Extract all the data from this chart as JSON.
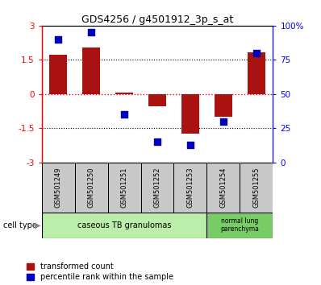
{
  "title": "GDS4256 / g4501912_3p_s_at",
  "samples": [
    "GSM501249",
    "GSM501250",
    "GSM501251",
    "GSM501252",
    "GSM501253",
    "GSM501254",
    "GSM501255"
  ],
  "transformed_count": [
    1.72,
    2.05,
    0.05,
    -0.55,
    -1.72,
    -1.0,
    1.82
  ],
  "percentile_rank": [
    90,
    95,
    35,
    15,
    13,
    30,
    80
  ],
  "ylim_left": [
    -3,
    3
  ],
  "ylim_right": [
    0,
    100
  ],
  "yticks_left": [
    -3,
    -1.5,
    0,
    1.5,
    3
  ],
  "yticks_right": [
    0,
    25,
    50,
    75,
    100
  ],
  "yticklabels_right": [
    "0",
    "25",
    "50",
    "75",
    "100%"
  ],
  "bar_color": "#aa1111",
  "dot_color": "#0000bb",
  "bar_width": 0.55,
  "dot_size": 40,
  "group1_label": "caseous TB granulomas",
  "group2_label": "normal lung\nparenchyma",
  "group1_color": "#bbeeaa",
  "group2_color": "#77cc66",
  "legend_red_label": "transformed count",
  "legend_blue_label": "percentile rank within the sample",
  "cell_type_label": "cell type",
  "tick_label_gray": "#c0c0c0",
  "sample_box_color": "#c8c8c8"
}
